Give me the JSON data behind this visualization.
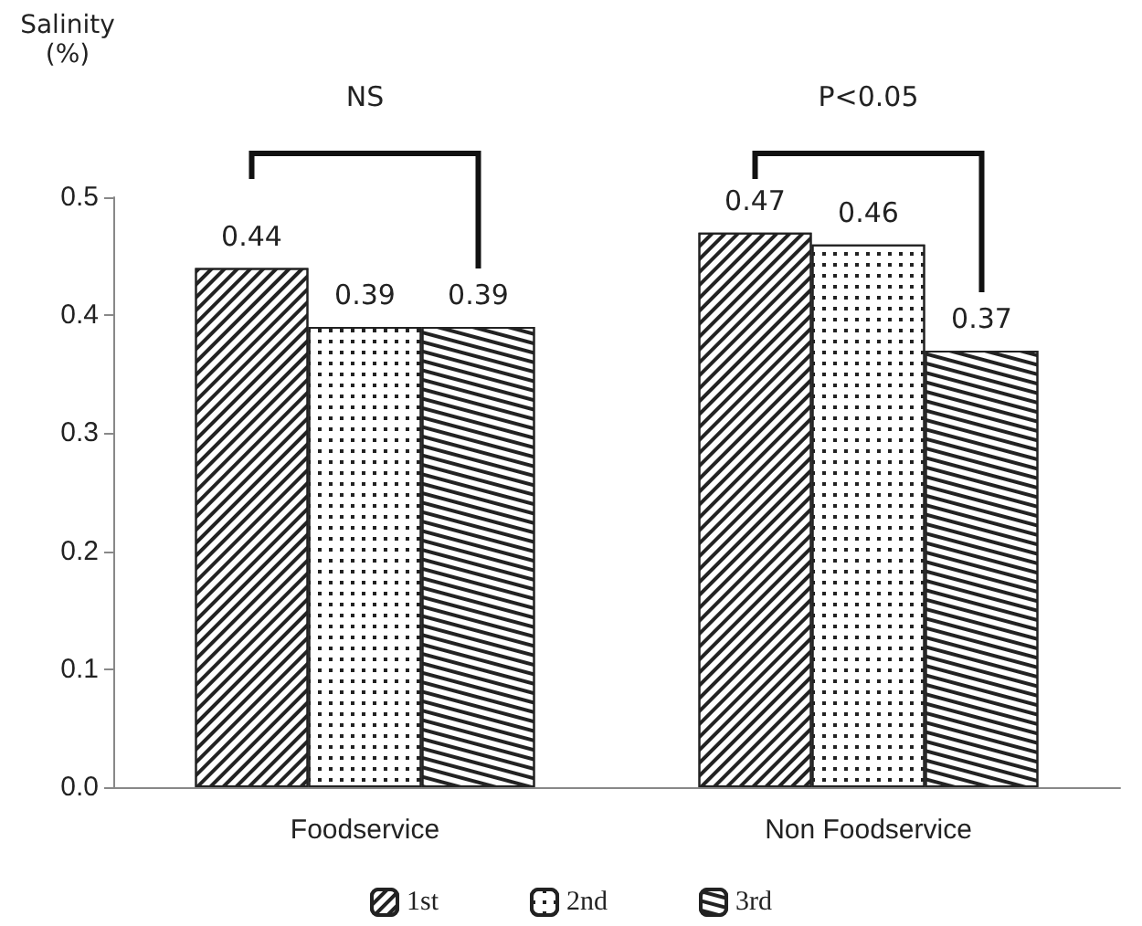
{
  "chart_data": {
    "type": "bar",
    "ylabel": "Salinity (%)",
    "categories": [
      "Foodservice",
      "Non Foodservice"
    ],
    "series": [
      {
        "name": "1st",
        "color": "#ffffff",
        "values": [
          0.44,
          0.47
        ]
      },
      {
        "name": "2nd",
        "color": "#ffffff",
        "values": [
          0.39,
          0.46
        ]
      },
      {
        "name": "3rd",
        "color": "#ffffff",
        "values": [
          0.39,
          0.37
        ]
      }
    ],
    "ylim": [
      0,
      0.5
    ],
    "yticks": [
      {
        "value": 0,
        "label": "0.0"
      },
      {
        "value": 0.1,
        "label": "0.1"
      },
      {
        "value": 0.2,
        "label": "0.2"
      },
      {
        "value": 0.3,
        "label": "0.3"
      },
      {
        "value": 0.4,
        "label": "0.4"
      },
      {
        "value": 0.5,
        "label": "0.5"
      }
    ],
    "data_labels": true,
    "grid": false,
    "legend": "bottom",
    "annotations": [
      "NS",
      "P<0.05"
    ]
  }
}
